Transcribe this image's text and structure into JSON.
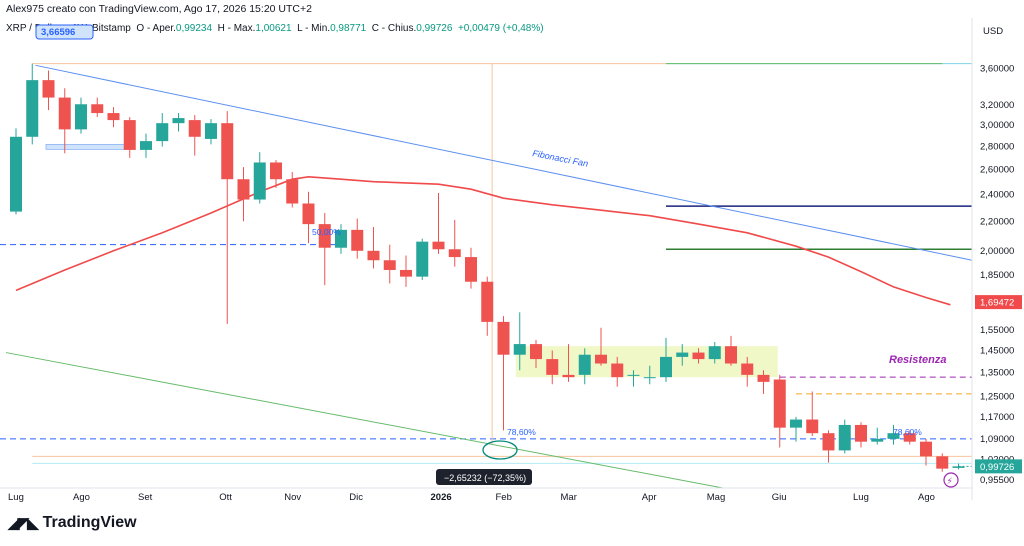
{
  "caption": "Alex975 creato con TradingView.com, Ago 17, 2026 15:20 UTC+2",
  "legend": {
    "symbol": "XRP / Dollaro, 1W, Bitstamp",
    "open_label": "O - Aper.",
    "open": "0,99234",
    "high_label": "H - Max.",
    "high": "1,00621",
    "low_label": "L - Min.",
    "low": "0,98771",
    "close_label": "C - Chius.",
    "close": "0,99726",
    "change": "+0,00479 (+0,48%)"
  },
  "currency_label": "USD",
  "brand": {
    "name": "TradingView",
    "logo_icon": "tradingview-logo-icon"
  },
  "colors": {
    "up": "#26a69a",
    "down": "#ef5350",
    "ma": "#f04a4a",
    "fan": "#5b8ff0",
    "resist": "#9c27b0",
    "range": "#f0f8c8"
  },
  "chart_data": {
    "type": "candlestick",
    "y_scale": "log",
    "ylim": [
      0.9,
      4.0
    ],
    "y_ticks": [
      {
        "v": 3.6,
        "t": "3,60000"
      },
      {
        "v": 3.2,
        "t": "3,20000"
      },
      {
        "v": 3.0,
        "t": "3,00000"
      },
      {
        "v": 2.8,
        "t": "2,80000"
      },
      {
        "v": 2.6,
        "t": "2,60000"
      },
      {
        "v": 2.4,
        "t": "2,40000"
      },
      {
        "v": 2.2,
        "t": "2,20000"
      },
      {
        "v": 2.0,
        "t": "2,00000"
      },
      {
        "v": 1.85,
        "t": "1,85000"
      },
      {
        "v": 1.55,
        "t": "1,55000"
      },
      {
        "v": 1.45,
        "t": "1,45000"
      },
      {
        "v": 1.35,
        "t": "1,35000"
      },
      {
        "v": 1.25,
        "t": "1,25000"
      },
      {
        "v": 1.17,
        "t": "1,17000"
      },
      {
        "v": 1.09,
        "t": "1,09000"
      },
      {
        "v": 1.02,
        "t": "1,02000"
      },
      {
        "v": 0.955,
        "t": "0,95500"
      }
    ],
    "x_labels": [
      {
        "i": 0,
        "t": "Lug"
      },
      {
        "i": 4,
        "t": "Ago"
      },
      {
        "i": 8,
        "t": "Set"
      },
      {
        "i": 13,
        "t": "Ott"
      },
      {
        "i": 17,
        "t": "Nov"
      },
      {
        "i": 21,
        "t": "Dic"
      },
      {
        "i": 26,
        "t": "2026",
        "bold": true
      },
      {
        "i": 30,
        "t": "Feb"
      },
      {
        "i": 34,
        "t": "Mar"
      },
      {
        "i": 39,
        "t": "Apr"
      },
      {
        "i": 43,
        "t": "Mag"
      },
      {
        "i": 47,
        "t": "Giu"
      },
      {
        "i": 52,
        "t": "Lug"
      },
      {
        "i": 56,
        "t": "Ago"
      }
    ],
    "candles": [
      {
        "o": 2.27,
        "h": 2.97,
        "l": 2.25,
        "c": 2.89
      },
      {
        "o": 2.89,
        "h": 3.66,
        "l": 2.82,
        "c": 3.47
      },
      {
        "o": 3.47,
        "h": 3.58,
        "l": 3.15,
        "c": 3.28
      },
      {
        "o": 3.28,
        "h": 3.38,
        "l": 2.74,
        "c": 2.96
      },
      {
        "o": 2.96,
        "h": 3.28,
        "l": 2.92,
        "c": 3.21
      },
      {
        "o": 3.21,
        "h": 3.28,
        "l": 3.08,
        "c": 3.12
      },
      {
        "o": 3.12,
        "h": 3.18,
        "l": 2.98,
        "c": 3.05
      },
      {
        "o": 3.05,
        "h": 3.08,
        "l": 2.7,
        "c": 2.77
      },
      {
        "o": 2.77,
        "h": 2.92,
        "l": 2.7,
        "c": 2.85
      },
      {
        "o": 2.85,
        "h": 3.12,
        "l": 2.8,
        "c": 3.02
      },
      {
        "o": 3.02,
        "h": 3.12,
        "l": 2.94,
        "c": 3.07
      },
      {
        "o": 3.05,
        "h": 3.1,
        "l": 2.72,
        "c": 2.89
      },
      {
        "o": 2.87,
        "h": 3.06,
        "l": 2.82,
        "c": 3.02
      },
      {
        "o": 3.02,
        "h": 3.14,
        "l": 1.58,
        "c": 2.52
      },
      {
        "o": 2.52,
        "h": 2.62,
        "l": 2.2,
        "c": 2.36
      },
      {
        "o": 2.36,
        "h": 2.75,
        "l": 2.33,
        "c": 2.66
      },
      {
        "o": 2.66,
        "h": 2.68,
        "l": 2.45,
        "c": 2.52
      },
      {
        "o": 2.52,
        "h": 2.58,
        "l": 2.3,
        "c": 2.33
      },
      {
        "o": 2.33,
        "h": 2.42,
        "l": 2.05,
        "c": 2.18
      },
      {
        "o": 2.18,
        "h": 2.26,
        "l": 1.79,
        "c": 2.02
      },
      {
        "o": 2.02,
        "h": 2.18,
        "l": 1.98,
        "c": 2.14
      },
      {
        "o": 2.14,
        "h": 2.22,
        "l": 1.95,
        "c": 2.0
      },
      {
        "o": 2.0,
        "h": 2.16,
        "l": 1.89,
        "c": 1.94
      },
      {
        "o": 1.94,
        "h": 2.04,
        "l": 1.8,
        "c": 1.88
      },
      {
        "o": 1.88,
        "h": 1.97,
        "l": 1.78,
        "c": 1.84
      },
      {
        "o": 1.84,
        "h": 2.08,
        "l": 1.82,
        "c": 2.06
      },
      {
        "o": 2.06,
        "h": 2.41,
        "l": 1.98,
        "c": 2.01
      },
      {
        "o": 2.01,
        "h": 2.21,
        "l": 1.9,
        "c": 1.96
      },
      {
        "o": 1.96,
        "h": 2.02,
        "l": 1.77,
        "c": 1.81
      },
      {
        "o": 1.81,
        "h": 1.84,
        "l": 1.52,
        "c": 1.59
      },
      {
        "o": 1.59,
        "h": 1.62,
        "l": 1.12,
        "c": 1.43
      },
      {
        "o": 1.43,
        "h": 1.64,
        "l": 1.36,
        "c": 1.48
      },
      {
        "o": 1.48,
        "h": 1.5,
        "l": 1.37,
        "c": 1.41
      },
      {
        "o": 1.41,
        "h": 1.45,
        "l": 1.3,
        "c": 1.34
      },
      {
        "o": 1.34,
        "h": 1.48,
        "l": 1.31,
        "c": 1.33
      },
      {
        "o": 1.34,
        "h": 1.46,
        "l": 1.3,
        "c": 1.43
      },
      {
        "o": 1.43,
        "h": 1.56,
        "l": 1.38,
        "c": 1.39
      },
      {
        "o": 1.39,
        "h": 1.42,
        "l": 1.29,
        "c": 1.33
      },
      {
        "o": 1.34,
        "h": 1.36,
        "l": 1.29,
        "c": 1.34
      },
      {
        "o": 1.33,
        "h": 1.38,
        "l": 1.3,
        "c": 1.33
      },
      {
        "o": 1.33,
        "h": 1.51,
        "l": 1.31,
        "c": 1.42
      },
      {
        "o": 1.42,
        "h": 1.48,
        "l": 1.38,
        "c": 1.44
      },
      {
        "o": 1.44,
        "h": 1.46,
        "l": 1.39,
        "c": 1.41
      },
      {
        "o": 1.41,
        "h": 1.49,
        "l": 1.39,
        "c": 1.47
      },
      {
        "o": 1.47,
        "h": 1.52,
        "l": 1.38,
        "c": 1.39
      },
      {
        "o": 1.39,
        "h": 1.42,
        "l": 1.29,
        "c": 1.34
      },
      {
        "o": 1.34,
        "h": 1.36,
        "l": 1.26,
        "c": 1.31
      },
      {
        "o": 1.32,
        "h": 1.34,
        "l": 1.06,
        "c": 1.13
      },
      {
        "o": 1.13,
        "h": 1.17,
        "l": 1.08,
        "c": 1.16
      },
      {
        "o": 1.16,
        "h": 1.27,
        "l": 1.1,
        "c": 1.11
      },
      {
        "o": 1.11,
        "h": 1.12,
        "l": 1.01,
        "c": 1.05
      },
      {
        "o": 1.05,
        "h": 1.16,
        "l": 1.04,
        "c": 1.14
      },
      {
        "o": 1.14,
        "h": 1.15,
        "l": 1.06,
        "c": 1.08
      },
      {
        "o": 1.08,
        "h": 1.13,
        "l": 1.07,
        "c": 1.09
      },
      {
        "o": 1.09,
        "h": 1.14,
        "l": 1.07,
        "c": 1.11
      },
      {
        "o": 1.11,
        "h": 1.12,
        "l": 1.07,
        "c": 1.08
      },
      {
        "o": 1.08,
        "h": 1.09,
        "l": 1.0,
        "c": 1.03
      },
      {
        "o": 1.03,
        "h": 1.04,
        "l": 0.98,
        "c": 0.99
      },
      {
        "o": 0.99234,
        "h": 1.00621,
        "l": 0.98771,
        "c": 0.99726
      }
    ],
    "moving_average": [
      {
        "i": 0,
        "v": 1.76
      },
      {
        "i": 3,
        "v": 1.88
      },
      {
        "i": 6,
        "v": 2.0
      },
      {
        "i": 9,
        "v": 2.12
      },
      {
        "i": 12,
        "v": 2.26
      },
      {
        "i": 15,
        "v": 2.42
      },
      {
        "i": 17,
        "v": 2.52
      },
      {
        "i": 18,
        "v": 2.54
      },
      {
        "i": 20,
        "v": 2.52
      },
      {
        "i": 22,
        "v": 2.5
      },
      {
        "i": 24,
        "v": 2.49
      },
      {
        "i": 26,
        "v": 2.48
      },
      {
        "i": 28,
        "v": 2.44
      },
      {
        "i": 30,
        "v": 2.37
      },
      {
        "i": 33,
        "v": 2.32
      },
      {
        "i": 36,
        "v": 2.28
      },
      {
        "i": 39,
        "v": 2.24
      },
      {
        "i": 42,
        "v": 2.18
      },
      {
        "i": 45,
        "v": 2.12
      },
      {
        "i": 48,
        "v": 2.03
      },
      {
        "i": 50,
        "v": 1.96
      },
      {
        "i": 52,
        "v": 1.87
      },
      {
        "i": 54,
        "v": 1.78
      },
      {
        "i": 56,
        "v": 1.72
      },
      {
        "i": 57.5,
        "v": 1.68
      }
    ],
    "ma_last_label": "1,69472",
    "last_price_label": "0,99726",
    "annotations": {
      "fib_fan_label": "Fibonacci Fan",
      "resistance_label": "Resistenza",
      "fib_level_1": "78,60%",
      "fib_level_2": "78,60%",
      "fib_level_3": "50,00%",
      "measure_label": "−2,65232 (−72,35%)",
      "high_label": "3,66596"
    },
    "levels": {
      "top_line": 3.66,
      "navy_line": 2.31,
      "green_line": 2.01,
      "blue_dashed_left": 2.04,
      "resistance_dashed": 1.33,
      "orange_dashed": 1.26,
      "fib_dashed_low": 1.09,
      "orange_low_line": 1.03,
      "range_box": [
        1.33,
        1.47
      ]
    }
  }
}
